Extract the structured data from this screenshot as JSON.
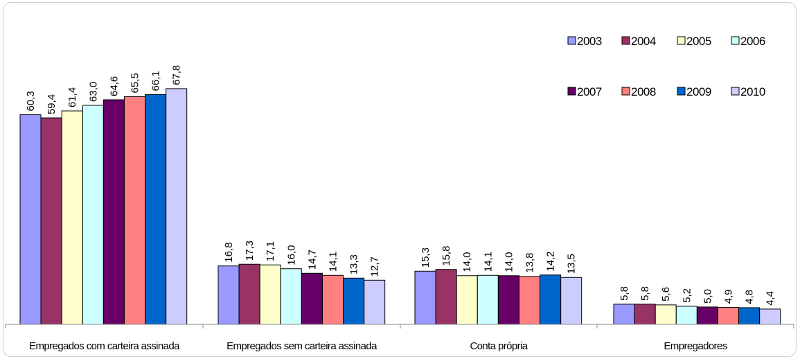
{
  "chart_data": {
    "type": "bar",
    "categories": [
      "Empregados com carteira assinada",
      "Empregados sem carteira assinada",
      "Conta própria",
      "Empregadores"
    ],
    "series": [
      {
        "name": "2003",
        "color": "#9999ff",
        "values": [
          60.3,
          16.8,
          15.3,
          5.8
        ]
      },
      {
        "name": "2004",
        "color": "#993366",
        "values": [
          59.4,
          17.3,
          15.8,
          5.8
        ]
      },
      {
        "name": "2005",
        "color": "#ffffcc",
        "values": [
          61.4,
          17.1,
          14.0,
          5.6
        ]
      },
      {
        "name": "2006",
        "color": "#ccffff",
        "values": [
          63.0,
          16.0,
          14.1,
          5.2
        ]
      },
      {
        "name": "2007",
        "color": "#660066",
        "values": [
          64.6,
          14.7,
          14.0,
          5.0
        ]
      },
      {
        "name": "2008",
        "color": "#ff8080",
        "values": [
          65.5,
          14.1,
          13.8,
          4.9
        ]
      },
      {
        "name": "2009",
        "color": "#0066cc",
        "values": [
          66.1,
          13.3,
          14.2,
          4.8
        ]
      },
      {
        "name": "2010",
        "color": "#ccccff",
        "values": [
          67.8,
          12.7,
          13.5,
          4.4
        ]
      }
    ],
    "value_labels": [
      [
        "60,3",
        "16,8",
        "15,3",
        "5,8"
      ],
      [
        "59,4",
        "17,3",
        "15,8",
        "5,8"
      ],
      [
        "61,4",
        "17,1",
        "14,0",
        "5,6"
      ],
      [
        "63,0",
        "16,0",
        "14,1",
        "5,2"
      ],
      [
        "64,6",
        "14,7",
        "14,0",
        "5,0"
      ],
      [
        "65,5",
        "14,1",
        "13,8",
        "4,9"
      ],
      [
        "66,1",
        "13,3",
        "14,2",
        "4,8"
      ],
      [
        "67,8",
        "12,7",
        "13,5",
        "4,4"
      ]
    ],
    "ylim": [
      0,
      70
    ],
    "grid": false,
    "legend_position": "top-right"
  }
}
